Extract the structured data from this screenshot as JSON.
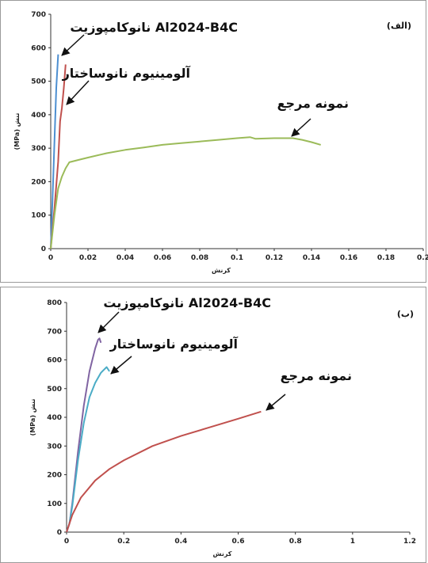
{
  "chart_data": [
    {
      "type": "line",
      "panel_label": "(الف)",
      "xlabel": "کرنش",
      "ylabel": "(MPa) تنش",
      "xlim": [
        0,
        0.2
      ],
      "ylim": [
        0,
        700
      ],
      "x_ticks": [
        "0",
        "0.02",
        "0.04",
        "0.06",
        "0.08",
        "0.1",
        "0.12",
        "0.14",
        "0.16",
        "0.18",
        "0.2"
      ],
      "y_ticks": [
        "0",
        "100",
        "200",
        "300",
        "400",
        "500",
        "600",
        "700"
      ],
      "series": [
        {
          "name": "نانوکامپوزیت Al2024-B4C",
          "color": "#4d8fd1",
          "x": [
            0,
            0.001,
            0.002,
            0.003,
            0.004
          ],
          "y": [
            0,
            150,
            320,
            480,
            580
          ]
        },
        {
          "name": "آلومینیوم نانوساختار",
          "color": "#c0504d",
          "x": [
            0,
            0.002,
            0.004,
            0.005,
            0.006,
            0.007,
            0.008
          ],
          "y": [
            0,
            120,
            260,
            380,
            420,
            480,
            550
          ]
        },
        {
          "name": "نمونه مرجع",
          "color": "#9bbb59",
          "x": [
            0,
            0.002,
            0.004,
            0.006,
            0.008,
            0.01,
            0.015,
            0.02,
            0.03,
            0.04,
            0.05,
            0.06,
            0.07,
            0.08,
            0.09,
            0.1,
            0.107,
            0.11,
            0.12,
            0.13,
            0.135,
            0.14,
            0.145
          ],
          "y": [
            0,
            100,
            180,
            215,
            240,
            258,
            265,
            272,
            285,
            295,
            302,
            310,
            315,
            320,
            325,
            330,
            333,
            328,
            330,
            330,
            325,
            318,
            310
          ]
        }
      ]
    },
    {
      "type": "line",
      "panel_label": "(ب)",
      "xlabel": "کرنش",
      "ylabel": "(MPa) تنش",
      "xlim": [
        0,
        1.2
      ],
      "ylim": [
        0,
        800
      ],
      "x_ticks": [
        "0",
        "0.2",
        "0.4",
        "0.6",
        "0.8",
        "1",
        "1.2"
      ],
      "y_ticks": [
        "0",
        "100",
        "200",
        "300",
        "400",
        "500",
        "600",
        "700",
        "800"
      ],
      "series": [
        {
          "name": "نانوکامپوزیت Al2024-B4C",
          "color": "#8064a2",
          "x": [
            0,
            0.01,
            0.02,
            0.04,
            0.06,
            0.08,
            0.1,
            0.11,
            0.115,
            0.12
          ],
          "y": [
            0,
            30,
            100,
            280,
            440,
            560,
            640,
            670,
            675,
            660
          ]
        },
        {
          "name": "آلومینیوم نانوساختار",
          "color": "#4bacc6",
          "x": [
            0,
            0.01,
            0.02,
            0.04,
            0.06,
            0.08,
            0.1,
            0.12,
            0.14,
            0.15
          ],
          "y": [
            0,
            30,
            90,
            250,
            380,
            470,
            520,
            555,
            575,
            560
          ]
        },
        {
          "name": "نمونه مرجع",
          "color": "#c0504d",
          "x": [
            0,
            0.02,
            0.05,
            0.1,
            0.15,
            0.2,
            0.3,
            0.4,
            0.5,
            0.6,
            0.68
          ],
          "y": [
            0,
            60,
            120,
            180,
            220,
            250,
            300,
            335,
            365,
            395,
            420
          ]
        }
      ]
    }
  ]
}
